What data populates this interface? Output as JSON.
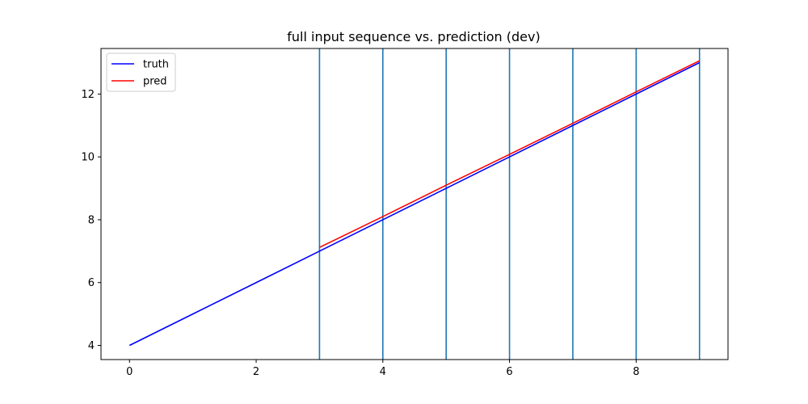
{
  "chart_data": {
    "type": "line",
    "title": "full input sequence vs. prediction (dev)",
    "xlabel": "",
    "ylabel": "",
    "xlim": [
      -0.45,
      9.45
    ],
    "ylim": [
      3.55,
      13.45
    ],
    "x_ticks": [
      0,
      2,
      4,
      6,
      8
    ],
    "y_ticks": [
      4,
      6,
      8,
      10,
      12
    ],
    "grid": false,
    "legend_position": "top-left",
    "series": [
      {
        "name": "truth",
        "color": "#0000ff",
        "x": [
          0,
          1,
          2,
          3,
          4,
          5,
          6,
          7,
          8,
          9
        ],
        "y": [
          4,
          5,
          6,
          7,
          8,
          9,
          10,
          11,
          12,
          13
        ]
      },
      {
        "name": "pred",
        "color": "#ff0000",
        "x": [
          3,
          4,
          5,
          6,
          7,
          8,
          9
        ],
        "y": [
          7.12,
          8.1,
          9.1,
          10.08,
          11.07,
          12.07,
          13.06
        ]
      }
    ],
    "vertical_lines": {
      "color": "#1f77b4",
      "x": [
        3,
        4,
        5,
        6,
        7,
        8,
        9
      ]
    }
  }
}
